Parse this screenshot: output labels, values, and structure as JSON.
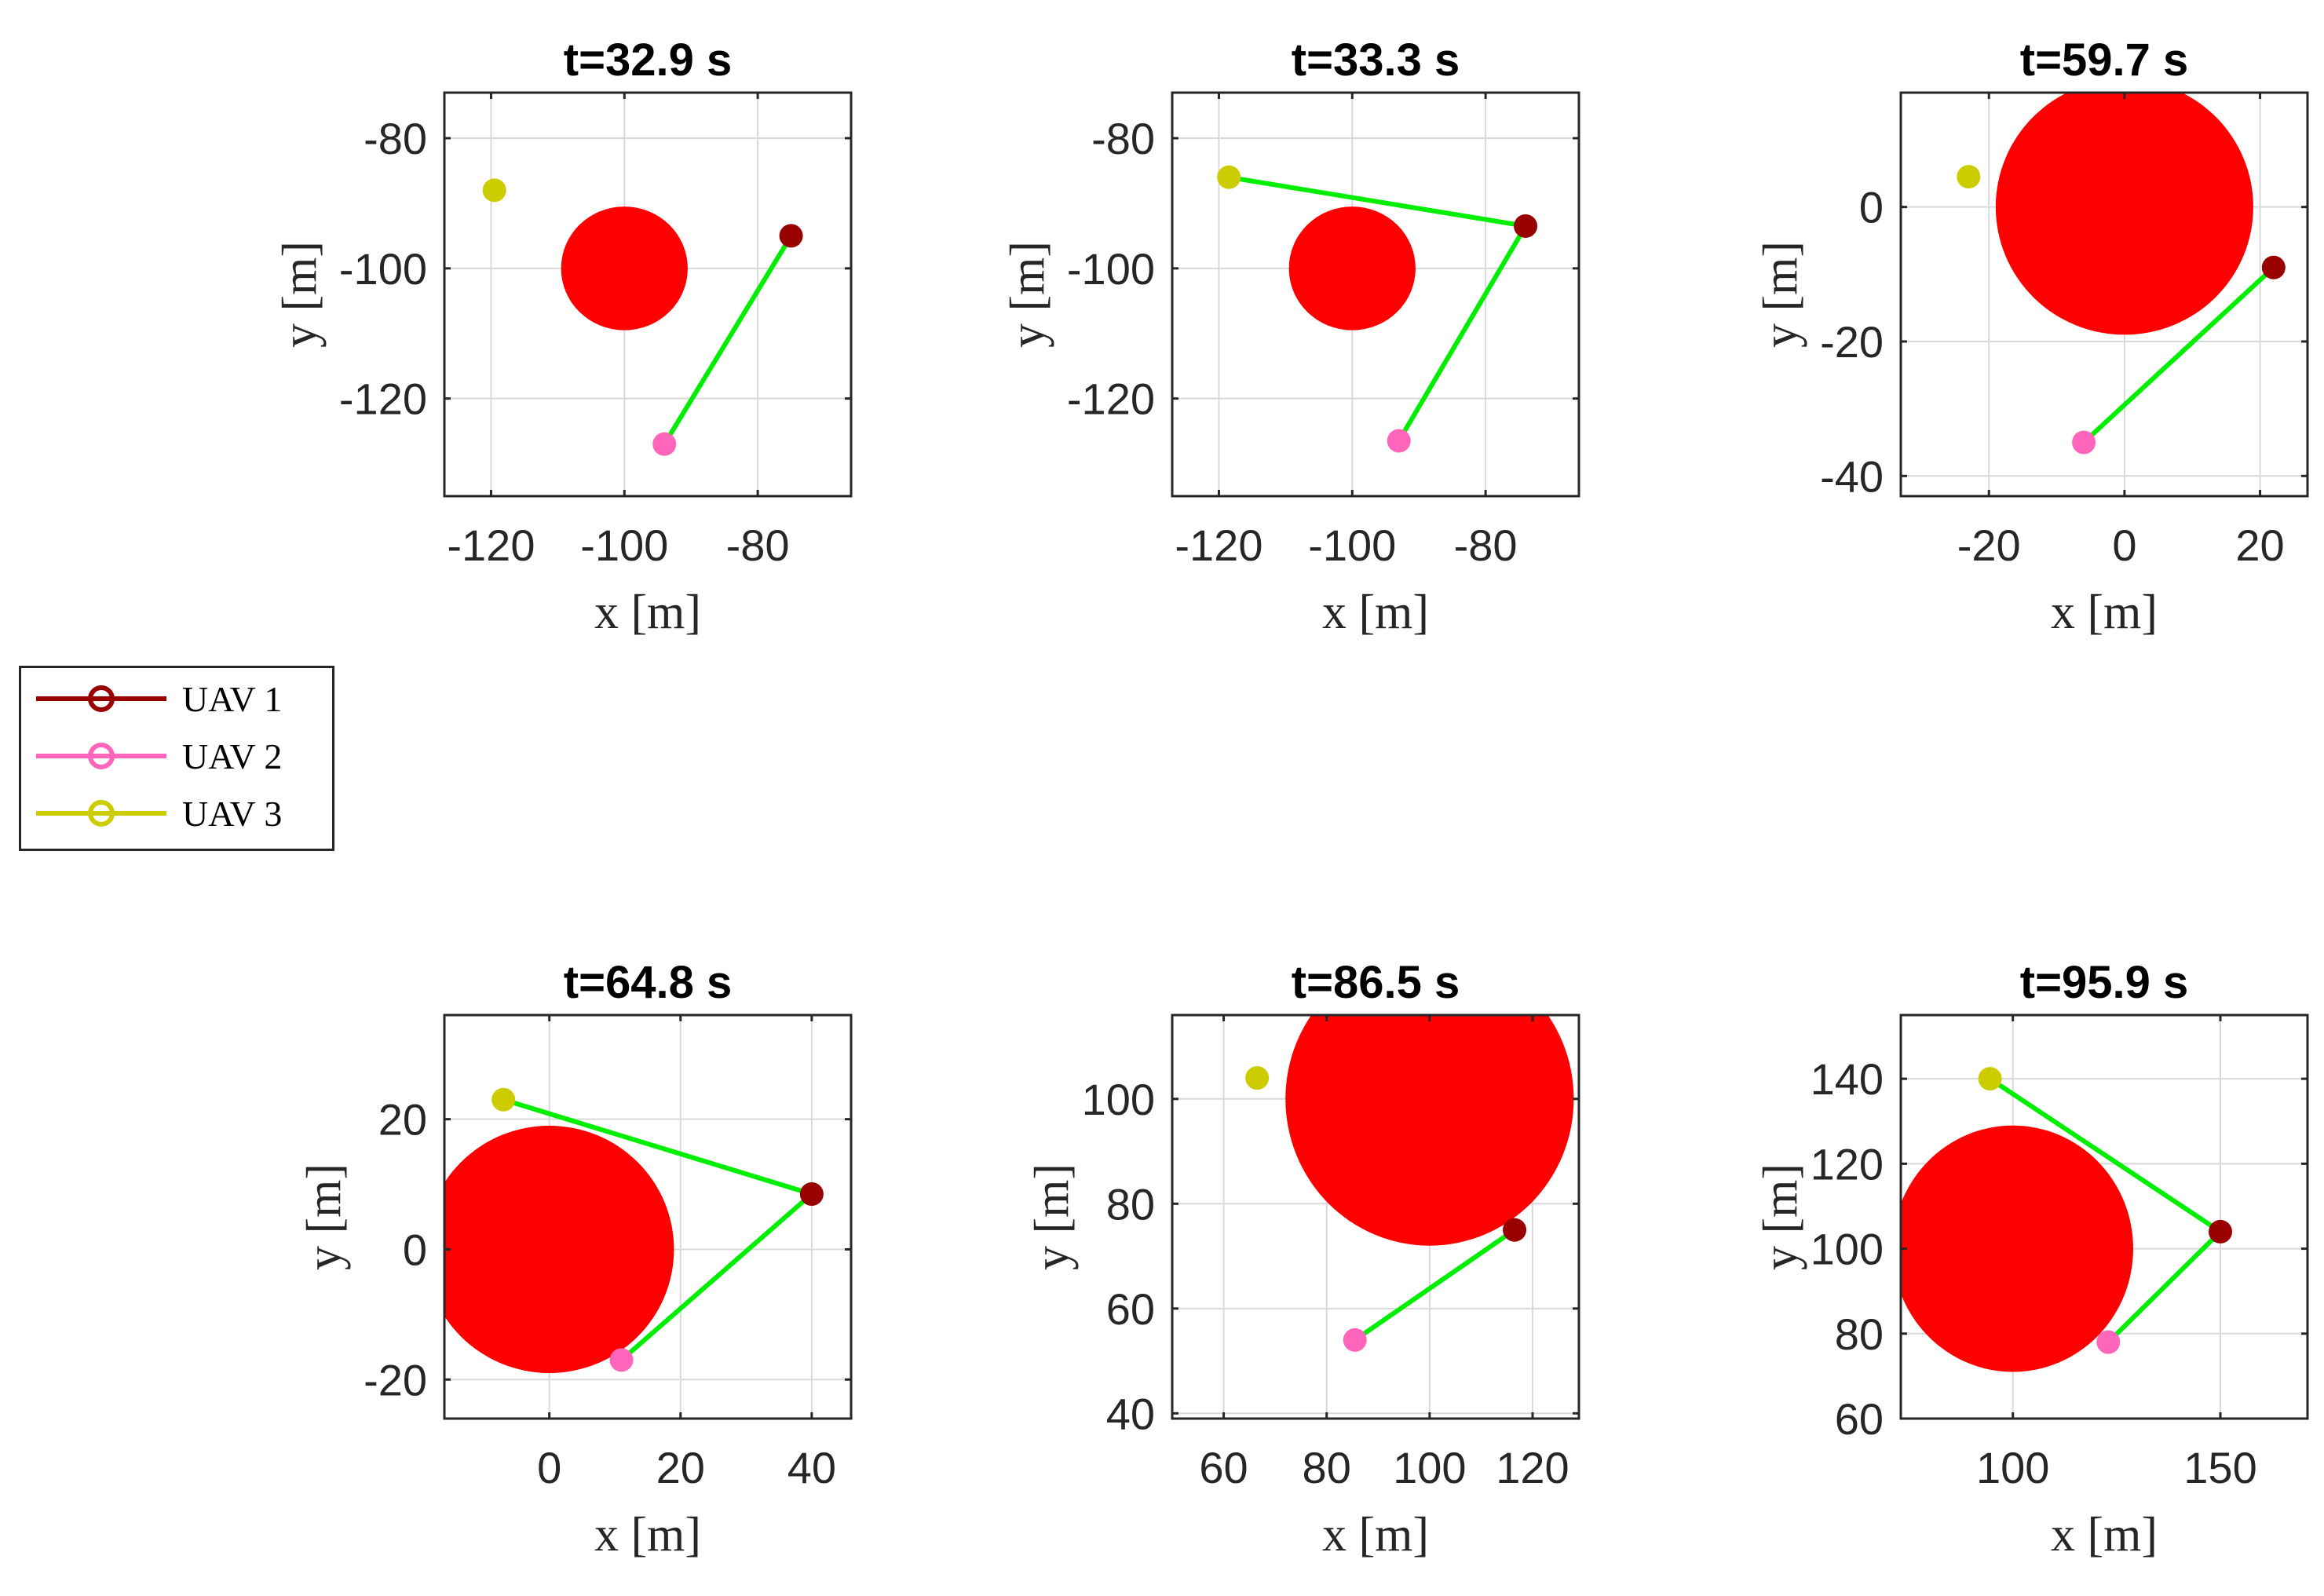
{
  "colors": {
    "obstacle": "#ff0000",
    "link": "#00ee00",
    "uav1": "#990000",
    "uav2": "#ff66bb",
    "uav3": "#cccc00"
  },
  "legend": {
    "placement": "left-middle",
    "items": [
      {
        "label": "UAV 1",
        "color": "#990000"
      },
      {
        "label": "UAV 2",
        "color": "#ff66bb"
      },
      {
        "label": "UAV 3",
        "color": "#cccc00"
      }
    ]
  },
  "chart_data": [
    {
      "type": "scatter",
      "title": "t=32.9 s",
      "xlabel": "x [m]",
      "ylabel": "y [m]",
      "xlim": [
        -127,
        -66
      ],
      "ylim": [
        -135,
        -73
      ],
      "xticks": [
        -120,
        -100,
        -80
      ],
      "yticks": [
        -80,
        -100,
        -120
      ],
      "grid": true,
      "obstacle": {
        "x": -100,
        "y": -100,
        "r": 9.5
      },
      "uavs": [
        {
          "name": "UAV 1",
          "x": -75,
          "y": -95
        },
        {
          "name": "UAV 2",
          "x": -94,
          "y": -127
        },
        {
          "name": "UAV 3",
          "x": -119.5,
          "y": -88
        }
      ],
      "links": [
        [
          0,
          1
        ]
      ]
    },
    {
      "type": "scatter",
      "title": "t=33.3 s",
      "xlabel": "x [m]",
      "ylabel": "y [m]",
      "xlim": [
        -127,
        -66
      ],
      "ylim": [
        -135,
        -73
      ],
      "xticks": [
        -120,
        -100,
        -80
      ],
      "yticks": [
        -80,
        -100,
        -120
      ],
      "grid": true,
      "obstacle": {
        "x": -100,
        "y": -100,
        "r": 9.5
      },
      "uavs": [
        {
          "name": "UAV 1",
          "x": -74,
          "y": -93.5
        },
        {
          "name": "UAV 2",
          "x": -93,
          "y": -126.5
        },
        {
          "name": "UAV 3",
          "x": -118.5,
          "y": -86
        }
      ],
      "links": [
        [
          0,
          1
        ],
        [
          0,
          2
        ]
      ]
    },
    {
      "type": "scatter",
      "title": "t=59.7 s",
      "xlabel": "x [m]",
      "ylabel": "y [m]",
      "xlim": [
        -33,
        27
      ],
      "ylim": [
        -43,
        17
      ],
      "xticks": [
        -20,
        0,
        20
      ],
      "yticks": [
        0,
        -20,
        -40
      ],
      "grid": true,
      "obstacle": {
        "x": 0,
        "y": 0,
        "r": 19
      },
      "uavs": [
        {
          "name": "UAV 1",
          "x": 22,
          "y": -9
        },
        {
          "name": "UAV 2",
          "x": -6,
          "y": -35
        },
        {
          "name": "UAV 3",
          "x": -23,
          "y": 4.5
        }
      ],
      "links": [
        [
          0,
          1
        ]
      ]
    },
    {
      "type": "scatter",
      "title": "t=64.8 s",
      "xlabel": "x [m]",
      "ylabel": "y [m]",
      "xlim": [
        -16,
        46
      ],
      "ylim": [
        -26,
        36
      ],
      "xticks": [
        0,
        20,
        40
      ],
      "yticks": [
        20,
        0,
        -20
      ],
      "grid": true,
      "obstacle": {
        "x": 0,
        "y": 0,
        "r": 19
      },
      "uavs": [
        {
          "name": "UAV 1",
          "x": 40,
          "y": 8.5
        },
        {
          "name": "UAV 2",
          "x": 11,
          "y": -17
        },
        {
          "name": "UAV 3",
          "x": -7,
          "y": 23
        }
      ],
      "links": [
        [
          0,
          1
        ],
        [
          0,
          2
        ]
      ]
    },
    {
      "type": "scatter",
      "title": "t=86.5 s",
      "xlabel": "x [m]",
      "ylabel": "y [m]",
      "xlim": [
        50,
        129
      ],
      "ylim": [
        39,
        116
      ],
      "xticks": [
        60,
        80,
        100,
        120
      ],
      "yticks": [
        100,
        80,
        60,
        40
      ],
      "grid": true,
      "obstacle": {
        "x": 100,
        "y": 100,
        "r": 28
      },
      "uavs": [
        {
          "name": "UAV 1",
          "x": 116.5,
          "y": 75
        },
        {
          "name": "UAV 2",
          "x": 85.5,
          "y": 54
        },
        {
          "name": "UAV 3",
          "x": 66.5,
          "y": 104
        }
      ],
      "links": [
        [
          0,
          1
        ]
      ]
    },
    {
      "type": "scatter",
      "title": "t=95.9 s",
      "xlabel": "x [m]",
      "ylabel": "y [m]",
      "xlim": [
        73,
        171
      ],
      "ylim": [
        60,
        155
      ],
      "xticks": [
        100,
        150
      ],
      "yticks": [
        140,
        120,
        100,
        80,
        60
      ],
      "grid": true,
      "obstacle": {
        "x": 100,
        "y": 100,
        "r": 29
      },
      "uavs": [
        {
          "name": "UAV 1",
          "x": 150,
          "y": 104
        },
        {
          "name": "UAV 2",
          "x": 123,
          "y": 78
        },
        {
          "name": "UAV 3",
          "x": 94.5,
          "y": 140
        }
      ],
      "links": [
        [
          0,
          1
        ],
        [
          0,
          2
        ]
      ]
    }
  ]
}
